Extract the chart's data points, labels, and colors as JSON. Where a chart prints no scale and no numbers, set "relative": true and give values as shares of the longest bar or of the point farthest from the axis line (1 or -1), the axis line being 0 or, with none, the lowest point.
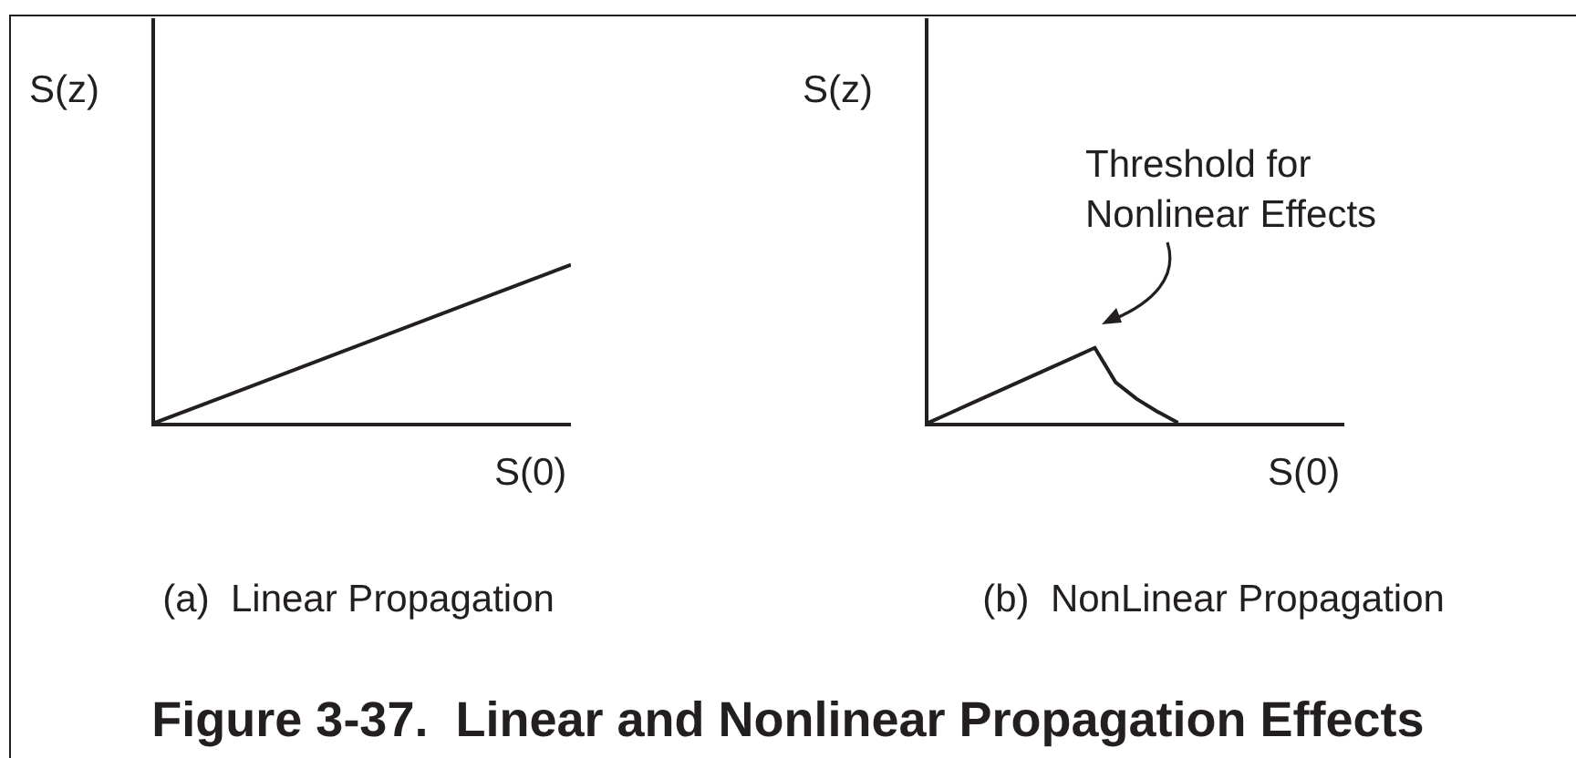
{
  "chart_data": [
    {
      "type": "line",
      "relative": true,
      "title": "(a)  Linear Propagation",
      "xlabel": "S(0)",
      "ylabel": "S(z)",
      "categories": [
        null,
        null
      ],
      "series": [
        {
          "color": "#231f20",
          "values": [
            0,
            1
          ]
        }
      ],
      "marker": "none",
      "line_style": "solid",
      "annotations": [
        "Figure 3-37.  Linear and Nonlinear Propagation Effects"
      ]
    },
    {
      "type": "line",
      "relative": true,
      "title": "(b)  NonLinear Propagation",
      "xlabel": "S(0)",
      "ylabel": "S(z)",
      "categories": [
        null,
        null,
        null,
        null,
        null,
        null,
        null,
        null,
        null,
        null,
        null,
        null,
        null,
        null,
        null,
        null,
        null,
        null,
        null,
        null,
        null
      ],
      "series": [
        {
          "color": "#231f20",
          "values": [
            0,
            0.125,
            0.25,
            0.375,
            0.5,
            0.625,
            0.75,
            0.875,
            1,
            0.54,
            0.32,
            0.15,
            0,
            null,
            null,
            null,
            null,
            null,
            null,
            null,
            null
          ]
        }
      ],
      "marker": "none",
      "line_style": "solid",
      "annotations": [
        "Threshold for\nNonlinear Effects"
      ]
    }
  ]
}
